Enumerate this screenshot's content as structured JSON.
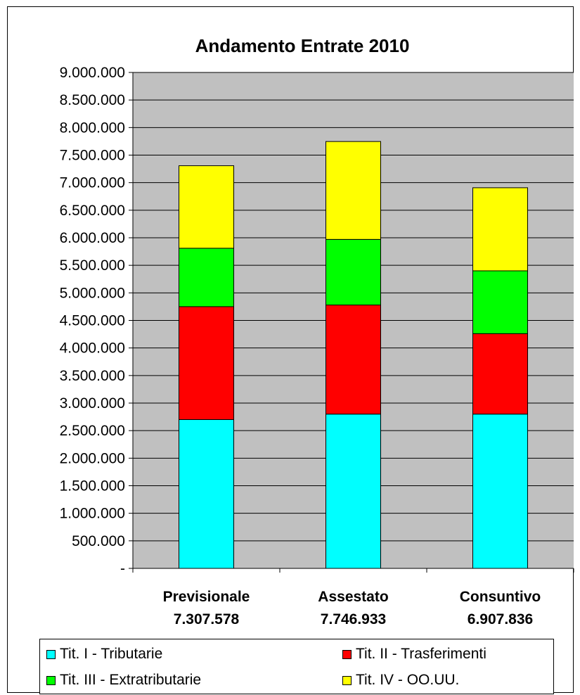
{
  "chart_data": {
    "type": "bar",
    "stacked": true,
    "title": "Andamento Entrate 2010",
    "categories": [
      "Previsionale",
      "Assestato",
      "Consuntivo"
    ],
    "category_totals": [
      "7.307.578",
      "7.746.933",
      "6.907.836"
    ],
    "series": [
      {
        "name": "Tit. I - Tributarie",
        "color": "#00FFFF",
        "values": [
          2700000,
          2800000,
          2800000
        ]
      },
      {
        "name": "Tit. II - Trasferimenti",
        "color": "#FF0000",
        "values": [
          2050000,
          1980000,
          1460000
        ]
      },
      {
        "name": "Tit. III - Extratributarie",
        "color": "#00FF00",
        "values": [
          1060000,
          1190000,
          1140000
        ]
      },
      {
        "name": "Tit. IV - OO.UU.",
        "color": "#FFFF00",
        "values": [
          1497578,
          1776933,
          1507836
        ]
      }
    ],
    "ylim": [
      0,
      9000000
    ],
    "y_ticks": [
      0,
      500000,
      1000000,
      1500000,
      2000000,
      2500000,
      3000000,
      3500000,
      4000000,
      4500000,
      5000000,
      5500000,
      6000000,
      6500000,
      7000000,
      7500000,
      8000000,
      8500000,
      9000000
    ],
    "y_tick_labels": [
      "-",
      "500.000",
      "1.000.000",
      "1.500.000",
      "2.000.000",
      "2.500.000",
      "3.000.000",
      "3.500.000",
      "4.000.000",
      "4.500.000",
      "5.000.000",
      "5.500.000",
      "6.000.000",
      "6.500.000",
      "7.000.000",
      "7.500.000",
      "8.000.000",
      "8.500.000",
      "9.000.000"
    ],
    "grid": true,
    "plot_background": "#C0C0C0",
    "legend_position": "bottom"
  }
}
